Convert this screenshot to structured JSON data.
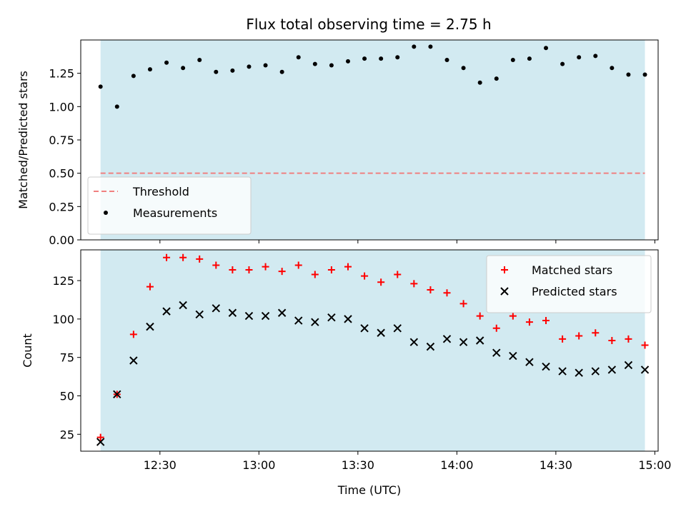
{
  "title": "Flux total observing time = 2.75 h",
  "chart_data": [
    {
      "type": "scatter",
      "ylabel": "Matched/Predicted stars",
      "ylim": [
        0,
        1.5
      ],
      "yticks": [
        0.0,
        0.25,
        0.5,
        0.75,
        1.0,
        1.25
      ],
      "ytick_labels": [
        "0.00",
        "0.25",
        "0.50",
        "0.75",
        "1.00",
        "1.25"
      ],
      "x_axis_type": "time (UTC)",
      "xlim": [
        "12:06",
        "15:01"
      ],
      "xticks": [
        "12:30",
        "13:00",
        "13:30",
        "14:00",
        "14:30",
        "15:00"
      ],
      "show_xtick_labels": false,
      "shaded_span": [
        "12:12",
        "14:57"
      ],
      "shade_color": "#add8e6",
      "threshold": {
        "name": "Threshold",
        "y": 0.5,
        "xrange": [
          "12:12",
          "14:57"
        ],
        "color": "#f08080",
        "style": "dashed"
      },
      "series": [
        {
          "name": "Measurements",
          "marker": "dot",
          "color": "#000000",
          "x": [
            "12:12",
            "12:17",
            "12:22",
            "12:27",
            "12:32",
            "12:37",
            "12:42",
            "12:47",
            "12:52",
            "12:57",
            "13:02",
            "13:07",
            "13:12",
            "13:17",
            "13:22",
            "13:27",
            "13:32",
            "13:37",
            "13:42",
            "13:47",
            "13:52",
            "13:57",
            "14:02",
            "14:07",
            "14:12",
            "14:17",
            "14:22",
            "14:27",
            "14:32",
            "14:37",
            "14:42",
            "14:47",
            "14:52",
            "14:57"
          ],
          "y": [
            1.15,
            1.0,
            1.23,
            1.28,
            1.33,
            1.29,
            1.35,
            1.26,
            1.27,
            1.3,
            1.31,
            1.26,
            1.37,
            1.32,
            1.31,
            1.34,
            1.36,
            1.36,
            1.37,
            1.45,
            1.45,
            1.35,
            1.29,
            1.18,
            1.21,
            1.35,
            1.36,
            1.44,
            1.32,
            1.37,
            1.38,
            1.29,
            1.24,
            1.24
          ]
        }
      ],
      "legend": {
        "location": "lower-left",
        "entries": [
          "Threshold",
          "Measurements"
        ]
      }
    },
    {
      "type": "scatter",
      "ylabel": "Count",
      "xlabel": "Time (UTC)",
      "ylim": [
        14,
        145
      ],
      "yticks": [
        25,
        50,
        75,
        100,
        125
      ],
      "ytick_labels": [
        "25",
        "50",
        "75",
        "100",
        "125"
      ],
      "x_axis_type": "time (UTC)",
      "xlim": [
        "12:06",
        "15:01"
      ],
      "xticks": [
        "12:30",
        "13:00",
        "13:30",
        "14:00",
        "14:30",
        "15:00"
      ],
      "xtick_labels": [
        "12:30",
        "13:00",
        "13:30",
        "14:00",
        "14:30",
        "15:00"
      ],
      "shaded_span": [
        "12:12",
        "14:57"
      ],
      "shade_color": "#add8e6",
      "series": [
        {
          "name": "Matched stars",
          "marker": "plus",
          "color": "#ff0000",
          "x": [
            "12:12",
            "12:17",
            "12:22",
            "12:27",
            "12:32",
            "12:37",
            "12:42",
            "12:47",
            "12:52",
            "12:57",
            "13:02",
            "13:07",
            "13:12",
            "13:17",
            "13:22",
            "13:27",
            "13:32",
            "13:37",
            "13:42",
            "13:47",
            "13:52",
            "13:57",
            "14:02",
            "14:07",
            "14:12",
            "14:17",
            "14:22",
            "14:27",
            "14:32",
            "14:37",
            "14:42",
            "14:47",
            "14:52",
            "14:57"
          ],
          "y": [
            23,
            51,
            90,
            121,
            140,
            140,
            139,
            135,
            132,
            132,
            134,
            131,
            135,
            129,
            132,
            134,
            128,
            124,
            129,
            123,
            119,
            117,
            110,
            102,
            94,
            102,
            98,
            99,
            87,
            89,
            91,
            86,
            87,
            83
          ]
        },
        {
          "name": "Predicted stars",
          "marker": "x",
          "color": "#000000",
          "x": [
            "12:12",
            "12:17",
            "12:22",
            "12:27",
            "12:32",
            "12:37",
            "12:42",
            "12:47",
            "12:52",
            "12:57",
            "13:02",
            "13:07",
            "13:12",
            "13:17",
            "13:22",
            "13:27",
            "13:32",
            "13:37",
            "13:42",
            "13:47",
            "13:52",
            "13:57",
            "14:02",
            "14:07",
            "14:12",
            "14:17",
            "14:22",
            "14:27",
            "14:32",
            "14:37",
            "14:42",
            "14:47",
            "14:52",
            "14:57"
          ],
          "y": [
            20,
            51,
            73,
            95,
            105,
            109,
            103,
            107,
            104,
            102,
            102,
            104,
            99,
            98,
            101,
            100,
            94,
            91,
            94,
            85,
            82,
            87,
            85,
            86,
            78,
            76,
            72,
            69,
            66,
            65,
            66,
            67,
            70,
            67
          ]
        }
      ],
      "legend": {
        "location": "top-right",
        "entries": [
          "Matched stars",
          "Predicted stars"
        ]
      }
    }
  ]
}
